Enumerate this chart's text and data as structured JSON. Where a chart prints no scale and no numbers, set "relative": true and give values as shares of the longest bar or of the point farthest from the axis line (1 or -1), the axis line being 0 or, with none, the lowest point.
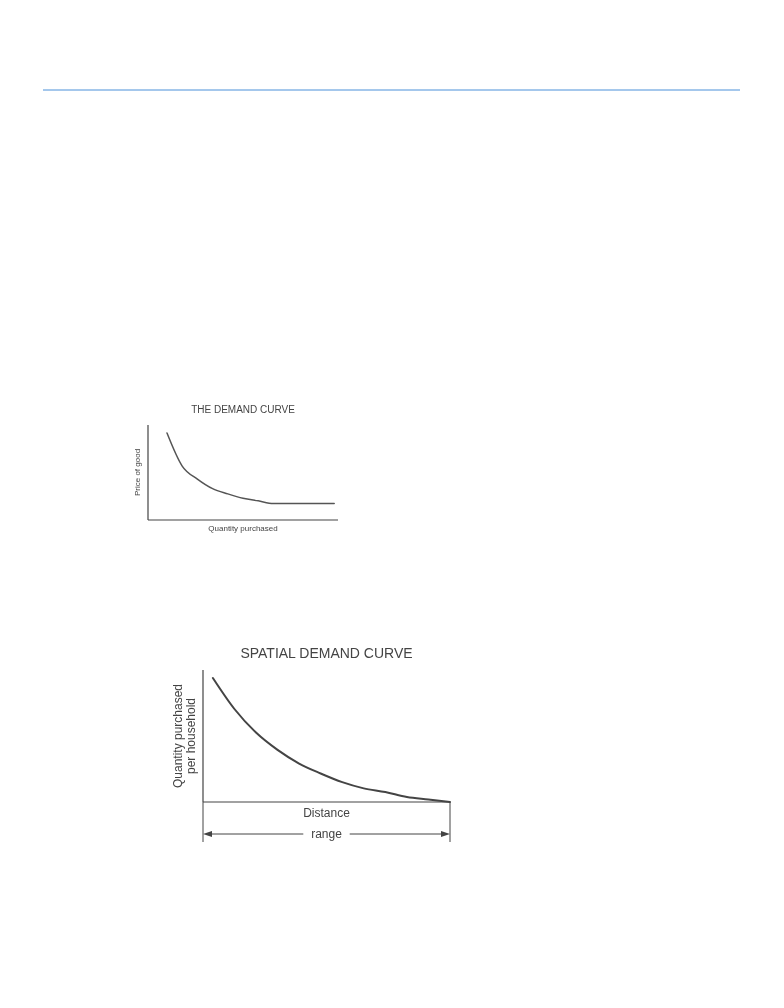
{
  "chart_data": [
    {
      "type": "line",
      "title": "THE DEMAND CURVE",
      "xlabel": "Quantity purchased",
      "ylabel": "Price of good",
      "relative": true,
      "categories": [
        null,
        null,
        null,
        null,
        null,
        null,
        null,
        null,
        null,
        null,
        null,
        null
      ],
      "series": [
        {
          "color": "#555555",
          "values": [
            1.0,
            0.62,
            0.47,
            0.36,
            0.3,
            0.25,
            0.22,
            0.19,
            0.19,
            0.19,
            0.19,
            0.19
          ]
        }
      ]
    },
    {
      "type": "line",
      "title": "SPATIAL DEMAND CURVE",
      "xlabel": "Distance",
      "ylabel": "Quantity purchased\nper household",
      "relative": true,
      "annotations": [
        "range"
      ],
      "categories": [
        null,
        null,
        null,
        null,
        null,
        null,
        null,
        null,
        null,
        null,
        null,
        null
      ],
      "series": [
        {
          "color": "#444444",
          "values": [
            1.0,
            0.75,
            0.56,
            0.42,
            0.31,
            0.23,
            0.16,
            0.11,
            0.08,
            0.04,
            0.02,
            0
          ]
        }
      ]
    }
  ]
}
